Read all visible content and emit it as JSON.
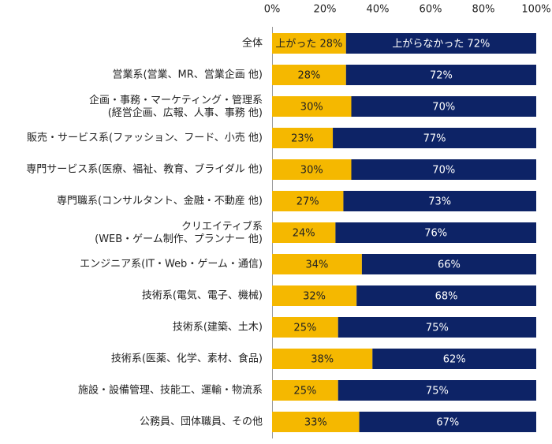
{
  "chart_data": {
    "type": "stacked-bar-horizontal",
    "categories": [
      "全体",
      "営業系(営業、MR、営業企画 他)",
      "企画・事務・マーケティング・管理系\n(経営企画、広報、人事、事務 他)",
      "販売・サービス系(ファッション、フード、小売 他)",
      "専門サービス系(医療、福祉、教育、ブライダル 他)",
      "専門職系(コンサルタント、金融・不動産 他)",
      "クリエイティブ系\n(WEB・ゲーム制作、プランナー 他)",
      "エンジニア系(IT・Web・ゲーム・通信)",
      "技術系(電気、電子、機械)",
      "技術系(建築、土木)",
      "技術系(医薬、化学、素材、食品)",
      "施設・設備管理、技能工、運輸・物流系",
      "公務員、団体職員、その他"
    ],
    "series": [
      {
        "color": "#f5b800",
        "label_color": "#222222",
        "values": [
          28,
          28,
          30,
          23,
          30,
          27,
          24,
          34,
          32,
          25,
          38,
          25,
          33
        ],
        "value_labels": [
          "上がった 28%",
          "28%",
          "30%",
          "23%",
          "30%",
          "27%",
          "24%",
          "34%",
          "32%",
          "25%",
          "38%",
          "25%",
          "33%"
        ]
      },
      {
        "color": "#0d2366",
        "label_color": "#ffffff",
        "values": [
          72,
          72,
          70,
          77,
          70,
          73,
          76,
          66,
          68,
          75,
          62,
          75,
          67
        ],
        "value_labels": [
          "上がらなかった 72%",
          "72%",
          "70%",
          "77%",
          "70%",
          "73%",
          "76%",
          "66%",
          "68%",
          "75%",
          "62%",
          "75%",
          "67%"
        ]
      }
    ],
    "xlim": [
      0,
      100
    ],
    "xticks": [
      {
        "value": 0,
        "label": "0%"
      },
      {
        "value": 20,
        "label": "20%"
      },
      {
        "value": 40,
        "label": "40%"
      },
      {
        "value": 60,
        "label": "60%"
      },
      {
        "value": 80,
        "label": "80%"
      },
      {
        "value": 100,
        "label": "100%"
      }
    ]
  }
}
